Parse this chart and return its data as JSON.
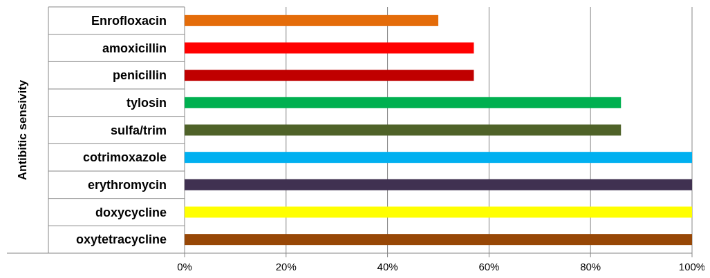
{
  "chart_data": {
    "type": "bar",
    "orientation": "horizontal",
    "ylabel": "Antibitic sensivity",
    "categories": [
      "Enrofloxacin",
      "amoxicillin",
      "penicillin",
      "tylosin",
      "sulfa/trim",
      "cotrimoxazole",
      "erythromycin",
      "doxycycline",
      "oxytetracycline"
    ],
    "values": [
      50,
      57,
      57,
      86,
      86,
      100,
      100,
      100,
      100
    ],
    "colors": [
      "#e46c0a",
      "#ff0000",
      "#c00000",
      "#00b050",
      "#4f6228",
      "#00b0f0",
      "#403151",
      "#ffff00",
      "#974706"
    ],
    "xlim": [
      0,
      100
    ],
    "xticks": [
      {
        "value": 0,
        "label": "0%"
      },
      {
        "value": 20,
        "label": "20%"
      },
      {
        "value": 40,
        "label": "40%"
      },
      {
        "value": 60,
        "label": "60%"
      },
      {
        "value": 80,
        "label": "80%"
      },
      {
        "value": 100,
        "label": "100%"
      }
    ],
    "grid": "x"
  }
}
